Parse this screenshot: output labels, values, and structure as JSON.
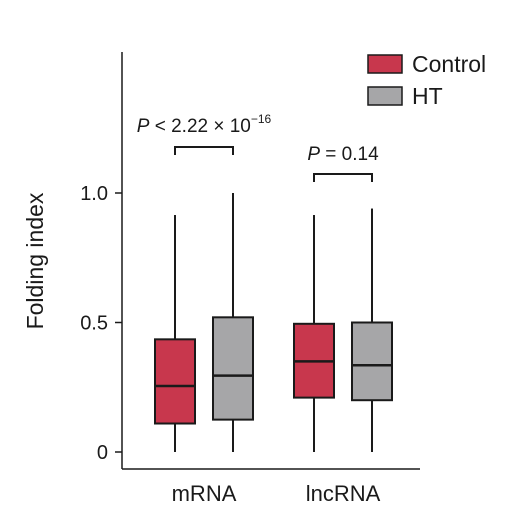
{
  "chart_data": {
    "type": "box",
    "ylabel": "Folding index",
    "ylim": [
      0,
      1.4
    ],
    "yticks": [
      {
        "value": 0,
        "label": "0"
      },
      {
        "value": 0.5,
        "label": "0.5"
      },
      {
        "value": 1.0,
        "label": "1.0"
      }
    ],
    "categories": [
      "mRNA",
      "lncRNA"
    ],
    "series": [
      {
        "name": "Control",
        "color": "#c8374d",
        "boxes": [
          {
            "min": 0.0,
            "q1": 0.11,
            "median": 0.255,
            "q3": 0.435,
            "max": 0.915
          },
          {
            "min": 0.0,
            "q1": 0.21,
            "median": 0.35,
            "q3": 0.495,
            "max": 0.915
          }
        ]
      },
      {
        "name": "HT",
        "color": "#a6a6a8",
        "boxes": [
          {
            "min": 0.0,
            "q1": 0.125,
            "median": 0.295,
            "q3": 0.52,
            "max": 1.0
          },
          {
            "min": 0.0,
            "q1": 0.2,
            "median": 0.335,
            "q3": 0.5,
            "max": 0.94
          }
        ]
      }
    ],
    "annotations": [
      {
        "category": "mRNA",
        "p_label": "P",
        "p_relation": " < ",
        "p_value": "2.22 × 10",
        "p_exponent": "−16"
      },
      {
        "category": "lncRNA",
        "p_label": "P",
        "p_relation": " = ",
        "p_value": "0.14",
        "p_exponent": ""
      }
    ],
    "legend": {
      "placement": "top-right",
      "entries": [
        "Control",
        "HT"
      ]
    },
    "grid": false
  }
}
